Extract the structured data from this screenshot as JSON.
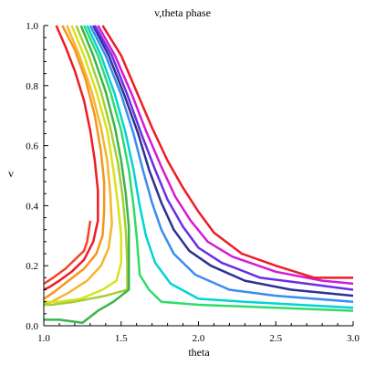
{
  "chart_data": {
    "type": "line",
    "title": "v,theta phase",
    "xlabel": "theta",
    "ylabel": "v",
    "xlim": [
      1.0,
      3.0
    ],
    "ylim": [
      0.0,
      1.0
    ],
    "x_ticks": [
      "1.0",
      "1.5",
      "2.0",
      "2.5",
      "3.0"
    ],
    "y_ticks": [
      "0.0",
      "0.2",
      "0.4",
      "0.6",
      "0.8",
      "1.0"
    ],
    "grid": false,
    "legend": "none",
    "series": [
      {
        "color": "#ee1c24",
        "points": [
          [
            1.08,
            1.0
          ],
          [
            1.14,
            0.93
          ],
          [
            1.2,
            0.85
          ],
          [
            1.26,
            0.75
          ],
          [
            1.3,
            0.65
          ],
          [
            1.33,
            0.55
          ],
          [
            1.35,
            0.45
          ],
          [
            1.35,
            0.35
          ],
          [
            1.32,
            0.28
          ],
          [
            1.26,
            0.22
          ],
          [
            1.18,
            0.18
          ],
          [
            1.1,
            0.15
          ],
          [
            1.04,
            0.13
          ],
          [
            1.0,
            0.12
          ]
        ]
      },
      {
        "color": "#f0442a",
        "points": [
          [
            1.0,
            0.14
          ],
          [
            1.06,
            0.16
          ],
          [
            1.14,
            0.19
          ],
          [
            1.2,
            0.22
          ],
          [
            1.26,
            0.25
          ],
          [
            1.28,
            0.28
          ],
          [
            1.3,
            0.35
          ]
        ]
      },
      {
        "color": "#f7941d",
        "points": [
          [
            1.12,
            1.0
          ],
          [
            1.2,
            0.92
          ],
          [
            1.27,
            0.82
          ],
          [
            1.33,
            0.7
          ],
          [
            1.37,
            0.58
          ],
          [
            1.39,
            0.48
          ],
          [
            1.39,
            0.38
          ],
          [
            1.38,
            0.3
          ],
          [
            1.34,
            0.24
          ],
          [
            1.26,
            0.19
          ],
          [
            1.16,
            0.15
          ],
          [
            1.06,
            0.11
          ],
          [
            1.0,
            0.09
          ]
        ]
      },
      {
        "color": "#f7b52c",
        "points": [
          [
            1.15,
            1.0
          ],
          [
            1.23,
            0.9
          ],
          [
            1.31,
            0.78
          ],
          [
            1.37,
            0.66
          ],
          [
            1.41,
            0.55
          ],
          [
            1.43,
            0.44
          ],
          [
            1.44,
            0.34
          ],
          [
            1.42,
            0.26
          ],
          [
            1.37,
            0.2
          ],
          [
            1.28,
            0.15
          ],
          [
            1.16,
            0.11
          ],
          [
            1.05,
            0.08
          ],
          [
            1.0,
            0.07
          ]
        ]
      },
      {
        "color": "#d8e21c",
        "points": [
          [
            1.18,
            1.0
          ],
          [
            1.26,
            0.9
          ],
          [
            1.34,
            0.78
          ],
          [
            1.41,
            0.65
          ],
          [
            1.45,
            0.52
          ],
          [
            1.48,
            0.4
          ],
          [
            1.5,
            0.3
          ],
          [
            1.5,
            0.21
          ],
          [
            1.47,
            0.15
          ],
          [
            1.38,
            0.12
          ],
          [
            1.24,
            0.09
          ],
          [
            1.1,
            0.08
          ],
          [
            1.0,
            0.08
          ]
        ]
      },
      {
        "color": "#a6ce39",
        "points": [
          [
            1.21,
            1.0
          ],
          [
            1.29,
            0.9
          ],
          [
            1.37,
            0.78
          ],
          [
            1.43,
            0.66
          ],
          [
            1.48,
            0.54
          ],
          [
            1.51,
            0.43
          ],
          [
            1.53,
            0.32
          ],
          [
            1.54,
            0.21
          ],
          [
            1.54,
            0.12
          ],
          [
            1.4,
            0.1
          ],
          [
            1.2,
            0.08
          ],
          [
            1.05,
            0.07
          ],
          [
            1.0,
            0.07
          ]
        ]
      },
      {
        "color": "#39b54a",
        "points": [
          [
            1.24,
            1.0
          ],
          [
            1.32,
            0.9
          ],
          [
            1.4,
            0.78
          ],
          [
            1.46,
            0.66
          ],
          [
            1.5,
            0.55
          ],
          [
            1.53,
            0.44
          ],
          [
            1.55,
            0.33
          ],
          [
            1.55,
            0.22
          ],
          [
            1.55,
            0.12
          ],
          [
            1.45,
            0.08
          ],
          [
            1.35,
            0.05
          ],
          [
            1.25,
            0.01
          ],
          [
            1.1,
            0.02
          ],
          [
            1.0,
            0.02
          ]
        ]
      },
      {
        "color": "#2fdc6a",
        "points": [
          [
            1.26,
            1.0
          ],
          [
            1.35,
            0.9
          ],
          [
            1.43,
            0.78
          ],
          [
            1.5,
            0.65
          ],
          [
            1.55,
            0.52
          ],
          [
            1.58,
            0.4
          ],
          [
            1.6,
            0.3
          ],
          [
            1.62,
            0.17
          ],
          [
            1.68,
            0.12
          ],
          [
            1.76,
            0.08
          ],
          [
            2.0,
            0.07
          ],
          [
            2.5,
            0.06
          ],
          [
            3.0,
            0.05
          ]
        ]
      },
      {
        "color": "#00d4d4",
        "points": [
          [
            1.28,
            1.0
          ],
          [
            1.37,
            0.9
          ],
          [
            1.46,
            0.77
          ],
          [
            1.53,
            0.64
          ],
          [
            1.58,
            0.52
          ],
          [
            1.62,
            0.4
          ],
          [
            1.66,
            0.3
          ],
          [
            1.72,
            0.21
          ],
          [
            1.82,
            0.14
          ],
          [
            2.0,
            0.09
          ],
          [
            2.3,
            0.08
          ],
          [
            3.0,
            0.06
          ]
        ]
      },
      {
        "color": "#3a8cf0",
        "points": [
          [
            1.3,
            1.0
          ],
          [
            1.4,
            0.9
          ],
          [
            1.5,
            0.77
          ],
          [
            1.58,
            0.64
          ],
          [
            1.64,
            0.52
          ],
          [
            1.7,
            0.41
          ],
          [
            1.76,
            0.32
          ],
          [
            1.84,
            0.24
          ],
          [
            1.98,
            0.17
          ],
          [
            2.2,
            0.12
          ],
          [
            2.5,
            0.1
          ],
          [
            3.0,
            0.08
          ]
        ]
      },
      {
        "color": "#2e3192",
        "points": [
          [
            1.32,
            1.0
          ],
          [
            1.42,
            0.9
          ],
          [
            1.52,
            0.77
          ],
          [
            1.61,
            0.64
          ],
          [
            1.68,
            0.52
          ],
          [
            1.76,
            0.41
          ],
          [
            1.84,
            0.32
          ],
          [
            1.94,
            0.25
          ],
          [
            2.08,
            0.2
          ],
          [
            2.3,
            0.15
          ],
          [
            2.6,
            0.12
          ],
          [
            3.0,
            0.1
          ]
        ]
      },
      {
        "color": "#6a2ee6",
        "points": [
          [
            1.33,
            1.0
          ],
          [
            1.44,
            0.9
          ],
          [
            1.54,
            0.77
          ],
          [
            1.63,
            0.64
          ],
          [
            1.72,
            0.52
          ],
          [
            1.8,
            0.42
          ],
          [
            1.9,
            0.33
          ],
          [
            2.0,
            0.26
          ],
          [
            2.15,
            0.21
          ],
          [
            2.4,
            0.16
          ],
          [
            2.7,
            0.14
          ],
          [
            3.0,
            0.12
          ]
        ]
      },
      {
        "color": "#d41cd4",
        "points": [
          [
            1.35,
            1.0
          ],
          [
            1.46,
            0.9
          ],
          [
            1.57,
            0.77
          ],
          [
            1.66,
            0.65
          ],
          [
            1.76,
            0.53
          ],
          [
            1.85,
            0.43
          ],
          [
            1.95,
            0.35
          ],
          [
            2.06,
            0.28
          ],
          [
            2.22,
            0.23
          ],
          [
            2.5,
            0.18
          ],
          [
            2.8,
            0.15
          ],
          [
            3.0,
            0.14
          ]
        ]
      },
      {
        "color": "#ee1c24",
        "points": [
          [
            1.38,
            1.0
          ],
          [
            1.5,
            0.9
          ],
          [
            1.6,
            0.78
          ],
          [
            1.7,
            0.66
          ],
          [
            1.8,
            0.55
          ],
          [
            1.9,
            0.46
          ],
          [
            2.0,
            0.38
          ],
          [
            2.1,
            0.31
          ],
          [
            2.28,
            0.24
          ],
          [
            2.5,
            0.2
          ],
          [
            2.75,
            0.16
          ],
          [
            3.0,
            0.16
          ]
        ]
      }
    ]
  }
}
